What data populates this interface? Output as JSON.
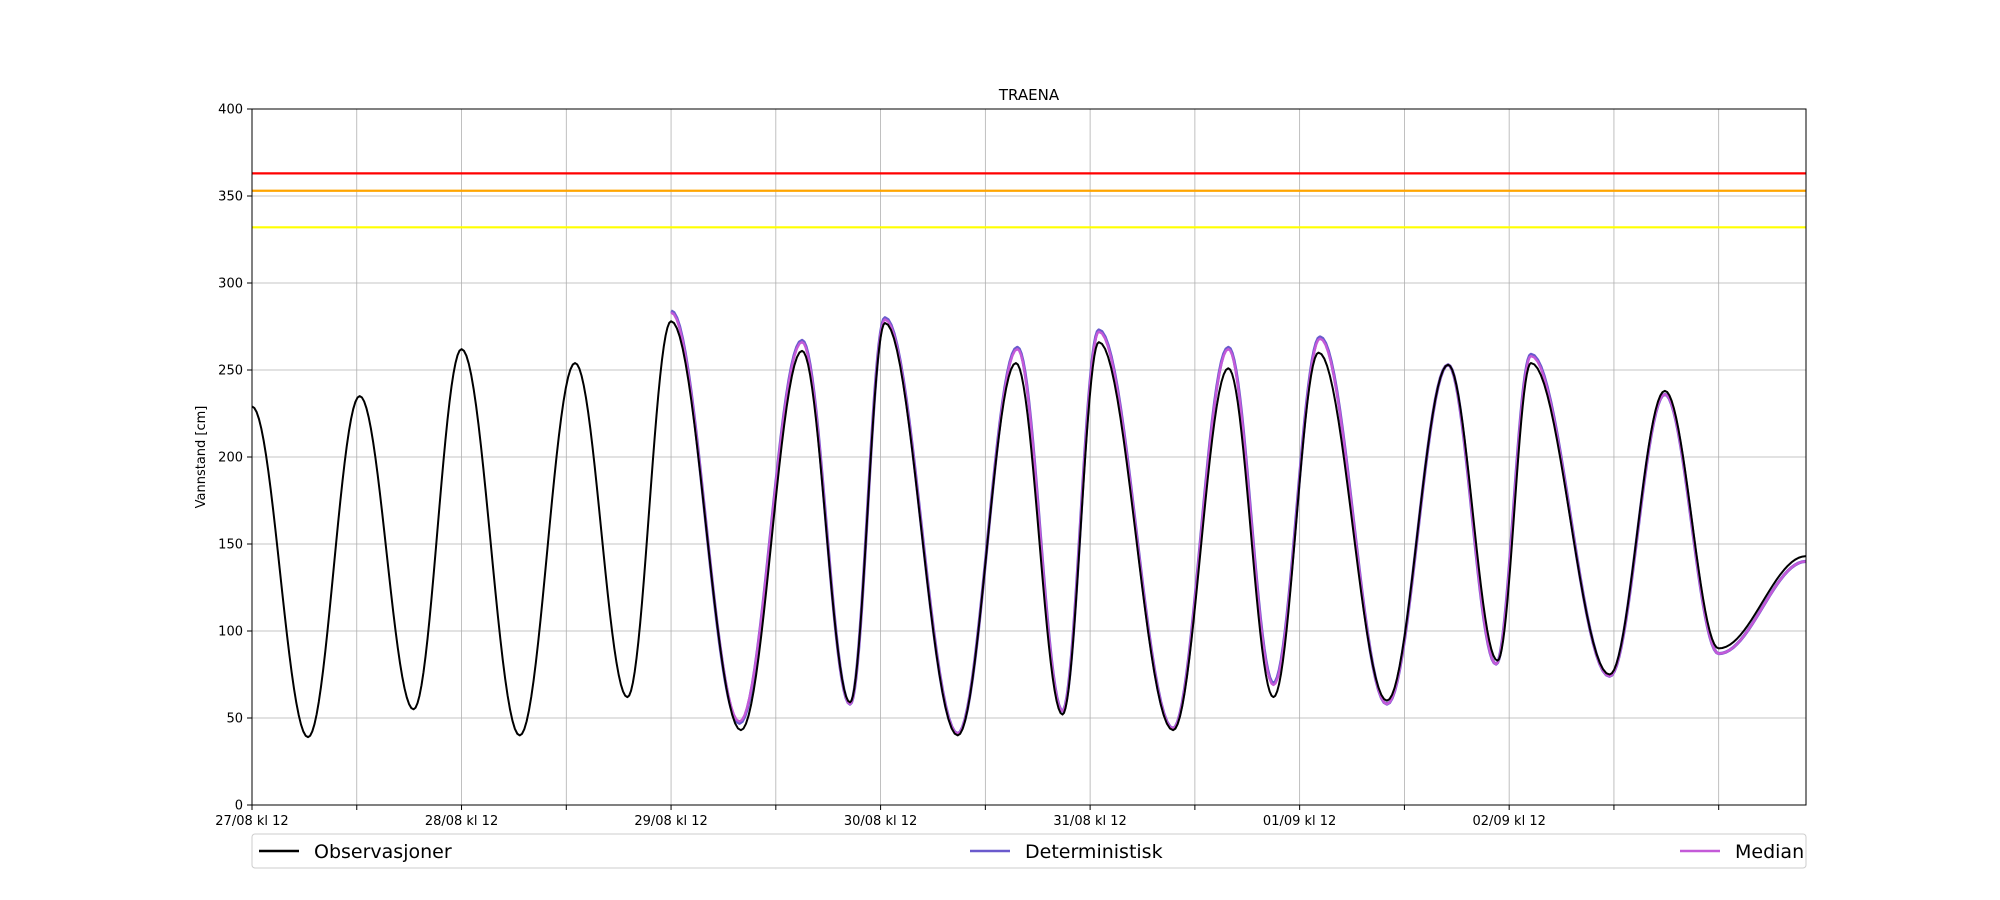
{
  "chart_data": {
    "type": "line",
    "title": "TRAENA",
    "ylabel": "Vannstand [cm]",
    "xlabel": "",
    "ylim": [
      0,
      400
    ],
    "yticks": [
      0,
      50,
      100,
      150,
      200,
      250,
      300,
      350,
      400
    ],
    "xlim": [
      "2024-08-27 12:00",
      "2024-09-03 22:00"
    ],
    "xtick_labels": [
      "27/08 kl 12",
      "28/08 kl 12",
      "29/08 kl 12",
      "30/08 kl 12",
      "31/08 kl 12",
      "01/09 kl 12",
      "02/09 kl 12"
    ],
    "grid": true,
    "legend": {
      "placement": "bottom",
      "entries": [
        "Observasjoner",
        "Deterministisk",
        "Median"
      ]
    },
    "thresholds": [
      {
        "value": 363,
        "color": "#ff0000"
      },
      {
        "value": 353,
        "color": "#ffa500"
      },
      {
        "value": 332,
        "color": "#ffff00"
      }
    ],
    "series": [
      {
        "name": "Observasjoner",
        "color": "#000000",
        "points": [
          [
            "2024-08-27 12:00",
            229
          ],
          [
            "2024-08-27 18:25",
            39
          ],
          [
            "2024-08-28 00:20",
            235
          ],
          [
            "2024-08-28 06:30",
            55
          ],
          [
            "2024-08-28 12:00",
            262
          ],
          [
            "2024-08-28 18:40",
            40
          ],
          [
            "2024-08-29 01:00",
            254
          ],
          [
            "2024-08-29 07:00",
            62
          ],
          [
            "2024-08-29 12:00",
            278
          ],
          [
            "2024-08-29 20:00",
            43
          ],
          [
            "2024-08-30 03:00",
            261
          ],
          [
            "2024-08-30 08:30",
            59
          ],
          [
            "2024-08-30 12:30",
            277
          ],
          [
            "2024-08-30 20:50",
            40
          ],
          [
            "2024-08-31 03:30",
            254
          ],
          [
            "2024-08-31 08:50",
            52
          ],
          [
            "2024-08-31 13:00",
            266
          ],
          [
            "2024-08-31 21:30",
            43
          ],
          [
            "2024-09-01 03:50",
            251
          ],
          [
            "2024-09-01 09:00",
            62
          ],
          [
            "2024-09-01 14:10",
            260
          ],
          [
            "2024-09-01 22:00",
            60
          ],
          [
            "2024-09-02 05:00",
            253
          ],
          [
            "2024-09-02 10:40",
            83
          ],
          [
            "2024-09-02 14:30",
            254
          ],
          [
            "2024-09-02 23:30",
            75
          ],
          [
            "2024-09-03 05:50",
            238
          ],
          [
            "2024-09-03 12:00",
            90
          ],
          [
            "2024-09-03 22:00",
            143
          ]
        ]
      },
      {
        "name": "Deterministisk",
        "color": "#6a5acd",
        "points": [
          [
            "2024-08-29 12:00",
            284
          ],
          [
            "2024-08-29 19:50",
            47
          ],
          [
            "2024-08-30 03:00",
            267
          ],
          [
            "2024-08-30 08:30",
            58
          ],
          [
            "2024-08-30 12:30",
            280
          ],
          [
            "2024-08-30 20:50",
            41
          ],
          [
            "2024-08-31 03:40",
            263
          ],
          [
            "2024-08-31 08:50",
            54
          ],
          [
            "2024-08-31 13:00",
            273
          ],
          [
            "2024-08-31 21:30",
            44
          ],
          [
            "2024-09-01 03:50",
            263
          ],
          [
            "2024-09-01 09:00",
            70
          ],
          [
            "2024-09-01 14:20",
            269
          ],
          [
            "2024-09-01 22:00",
            58
          ],
          [
            "2024-09-02 05:00",
            253
          ],
          [
            "2024-09-02 10:30",
            81
          ],
          [
            "2024-09-02 14:30",
            259
          ],
          [
            "2024-09-02 23:30",
            74
          ],
          [
            "2024-09-03 05:50",
            236
          ],
          [
            "2024-09-03 12:00",
            87
          ],
          [
            "2024-09-03 22:00",
            140
          ]
        ]
      },
      {
        "name": "Median",
        "color": "#c45ad8",
        "points": [
          [
            "2024-08-29 12:00",
            283
          ],
          [
            "2024-08-29 19:50",
            48
          ],
          [
            "2024-08-30 03:00",
            266
          ],
          [
            "2024-08-30 08:30",
            58
          ],
          [
            "2024-08-30 12:30",
            279
          ],
          [
            "2024-08-30 20:50",
            41
          ],
          [
            "2024-08-31 03:40",
            262
          ],
          [
            "2024-08-31 08:50",
            54
          ],
          [
            "2024-08-31 13:00",
            272
          ],
          [
            "2024-08-31 21:30",
            44
          ],
          [
            "2024-09-01 03:50",
            262
          ],
          [
            "2024-09-01 09:00",
            69
          ],
          [
            "2024-09-01 14:20",
            268
          ],
          [
            "2024-09-01 22:00",
            58
          ],
          [
            "2024-09-02 05:00",
            253
          ],
          [
            "2024-09-02 10:30",
            81
          ],
          [
            "2024-09-02 14:30",
            258
          ],
          [
            "2024-09-02 23:30",
            74
          ],
          [
            "2024-09-03 05:50",
            236
          ],
          [
            "2024-09-03 12:00",
            87
          ],
          [
            "2024-09-03 22:00",
            140
          ]
        ]
      }
    ]
  }
}
